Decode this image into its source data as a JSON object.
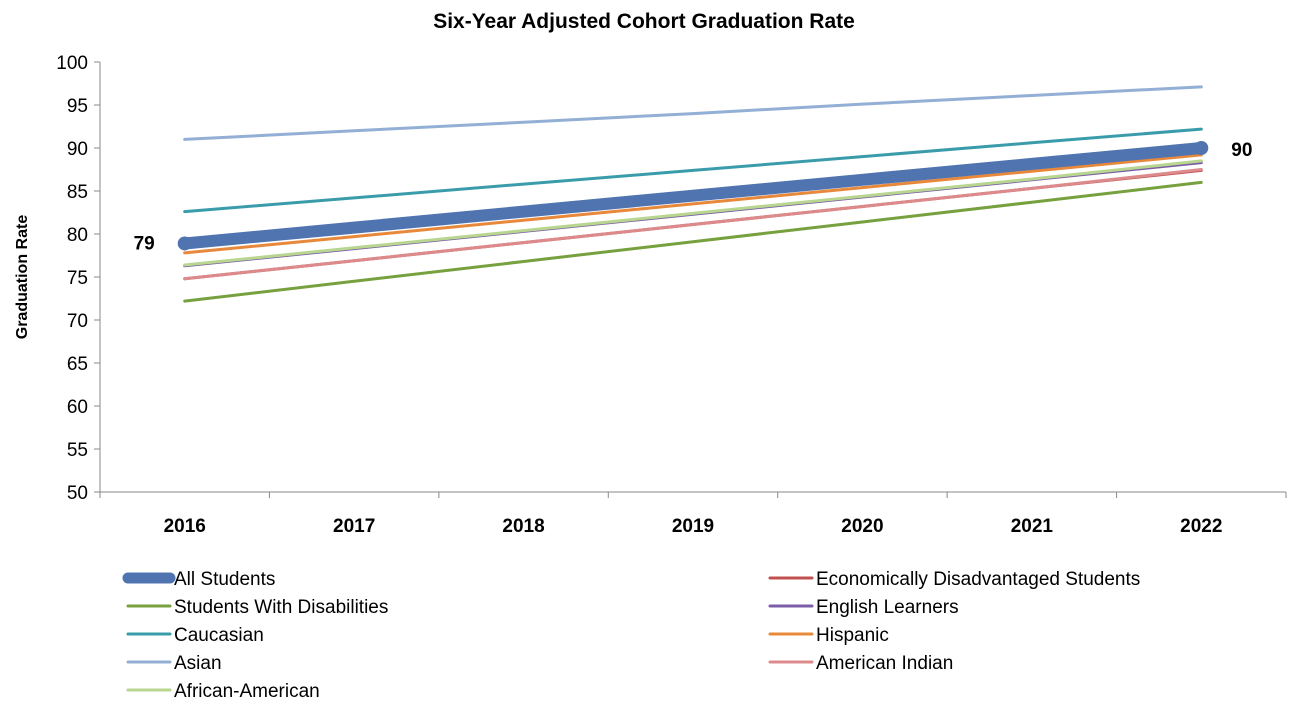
{
  "chart_data": {
    "type": "line",
    "title": "Six-Year Adjusted Cohort Graduation Rate",
    "xlabel": "",
    "ylabel": "Graduation Rate",
    "ylim": [
      50,
      100
    ],
    "yticks": [
      50,
      55,
      60,
      65,
      70,
      75,
      80,
      85,
      90,
      95,
      100
    ],
    "x": [
      "2016",
      "2017",
      "2018",
      "2019",
      "2020",
      "2021",
      "2022"
    ],
    "grid": false,
    "legend": "bottom",
    "series": [
      {
        "name": "All Students",
        "color": "#4F74B0",
        "values": [
          78.9,
          80.75,
          82.6,
          84.45,
          86.3,
          88.15,
          90.0
        ],
        "start_label": "79",
        "end_label": "90"
      },
      {
        "name": "Economically Disadvantaged Students",
        "color": "#C0504D",
        "values": [
          74.8,
          76.9,
          79.0,
          81.1,
          83.2,
          85.3,
          87.4
        ]
      },
      {
        "name": "Students With Disabilities",
        "color": "#77A03E",
        "values": [
          72.2,
          74.5,
          76.8,
          79.1,
          81.4,
          83.7,
          86.0
        ]
      },
      {
        "name": "English Learners",
        "color": "#7B5EA7",
        "values": [
          76.3,
          78.3,
          80.3,
          82.3,
          84.3,
          86.3,
          88.3
        ]
      },
      {
        "name": "Caucasian",
        "color": "#3A9CAB",
        "values": [
          82.6,
          84.2,
          85.8,
          87.4,
          89.0,
          90.6,
          92.2
        ]
      },
      {
        "name": "Hispanic",
        "color": "#E8883A",
        "values": [
          77.8,
          79.7,
          81.6,
          83.5,
          85.4,
          87.3,
          89.2
        ]
      },
      {
        "name": "Asian",
        "color": "#93AFD6",
        "values": [
          91.0,
          92.0,
          93.0,
          94.0,
          95.1,
          96.1,
          97.1
        ]
      },
      {
        "name": "American Indian",
        "color": "#DD8A8C",
        "values": [
          74.8,
          76.9,
          79.0,
          81.1,
          83.2,
          85.3,
          87.5
        ]
      },
      {
        "name": "African-American",
        "color": "#B8D68F",
        "values": [
          76.4,
          78.4,
          80.4,
          82.4,
          84.4,
          86.4,
          88.5
        ]
      }
    ]
  }
}
